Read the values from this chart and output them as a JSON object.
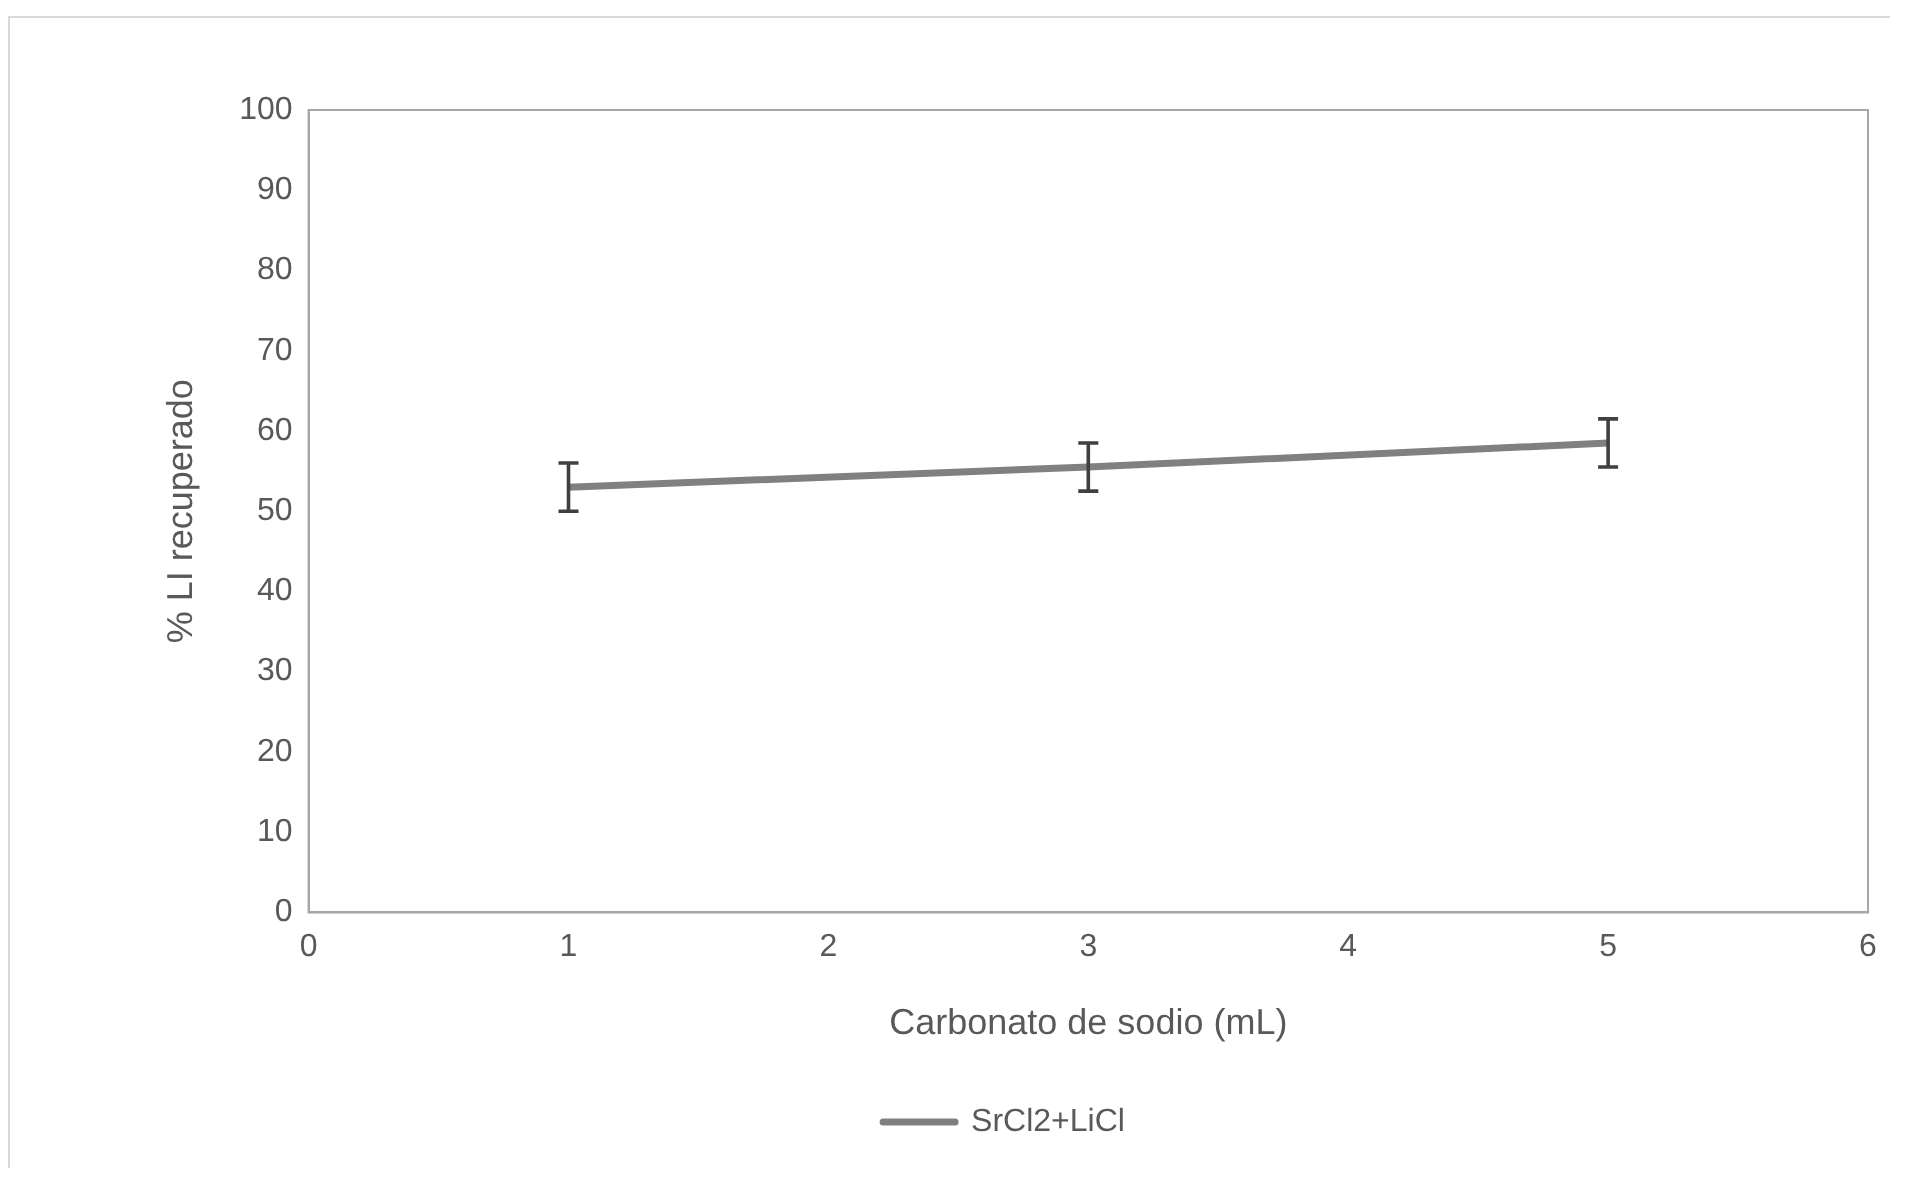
{
  "chart_data": {
    "type": "line",
    "xlabel": "Carbonato de sodio (mL)",
    "ylabel": "% LI recuperado",
    "x": [
      1,
      3,
      5
    ],
    "series": [
      {
        "name": "SrCl2+LiCl",
        "color": "#808080",
        "values": [
          53,
          55.5,
          58.5
        ],
        "errors": [
          3,
          3,
          3
        ]
      }
    ],
    "xlim": [
      0,
      6
    ],
    "xticks": [
      0,
      1,
      2,
      3,
      4,
      5,
      6
    ],
    "ylim": [
      0,
      100
    ],
    "yticks": [
      0,
      10,
      20,
      30,
      40,
      50,
      60,
      70,
      80,
      90,
      100
    ],
    "grid": false,
    "legend": "bottom",
    "marker": "none",
    "line_style": "solid"
  }
}
